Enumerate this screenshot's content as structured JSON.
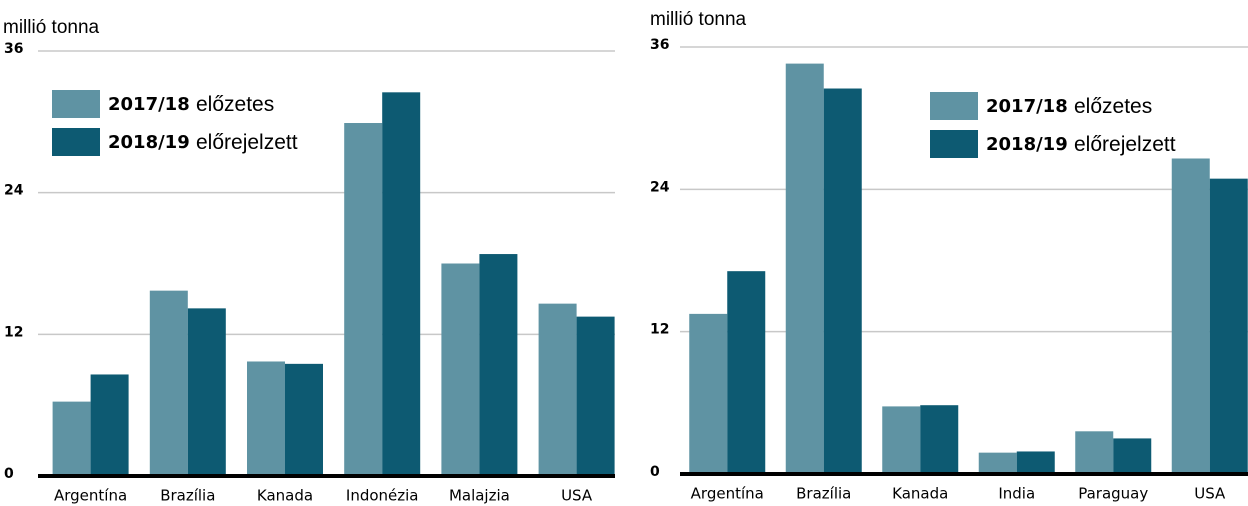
{
  "chart_data": [
    {
      "type": "bar",
      "y_label": "millió tonna",
      "categories": [
        "Argentína",
        "Brazília",
        "Kanada",
        "Indonézia",
        "Malajzia",
        "USA"
      ],
      "series": [
        {
          "name": "2017/18 előzetes",
          "color": "#5f93a3",
          "values": [
            6.3,
            15.7,
            9.7,
            29.9,
            18.0,
            14.6
          ]
        },
        {
          "name": "2018/19 előrejelzett",
          "color": "#0d5a72",
          "values": [
            8.6,
            14.2,
            9.5,
            32.5,
            18.8,
            13.5
          ]
        }
      ],
      "ylim": [
        0,
        36
      ],
      "yticks": [
        0,
        12,
        24,
        36
      ],
      "grid": true
    },
    {
      "type": "bar",
      "y_label": "millió tonna",
      "categories": [
        "Argentína",
        "Brazília",
        "Kanada",
        "India",
        "Paraguay",
        "USA"
      ],
      "series": [
        {
          "name": "2017/18 előzetes",
          "color": "#5f93a3",
          "values": [
            13.5,
            34.6,
            5.7,
            1.8,
            3.6,
            26.6
          ]
        },
        {
          "name": "2018/19 előrejelzett",
          "color": "#0d5a72",
          "values": [
            17.1,
            32.5,
            5.8,
            1.9,
            3.0,
            24.9
          ]
        }
      ],
      "ylim": [
        0,
        36
      ],
      "yticks": [
        0,
        12,
        24,
        36
      ],
      "grid": true
    }
  ]
}
